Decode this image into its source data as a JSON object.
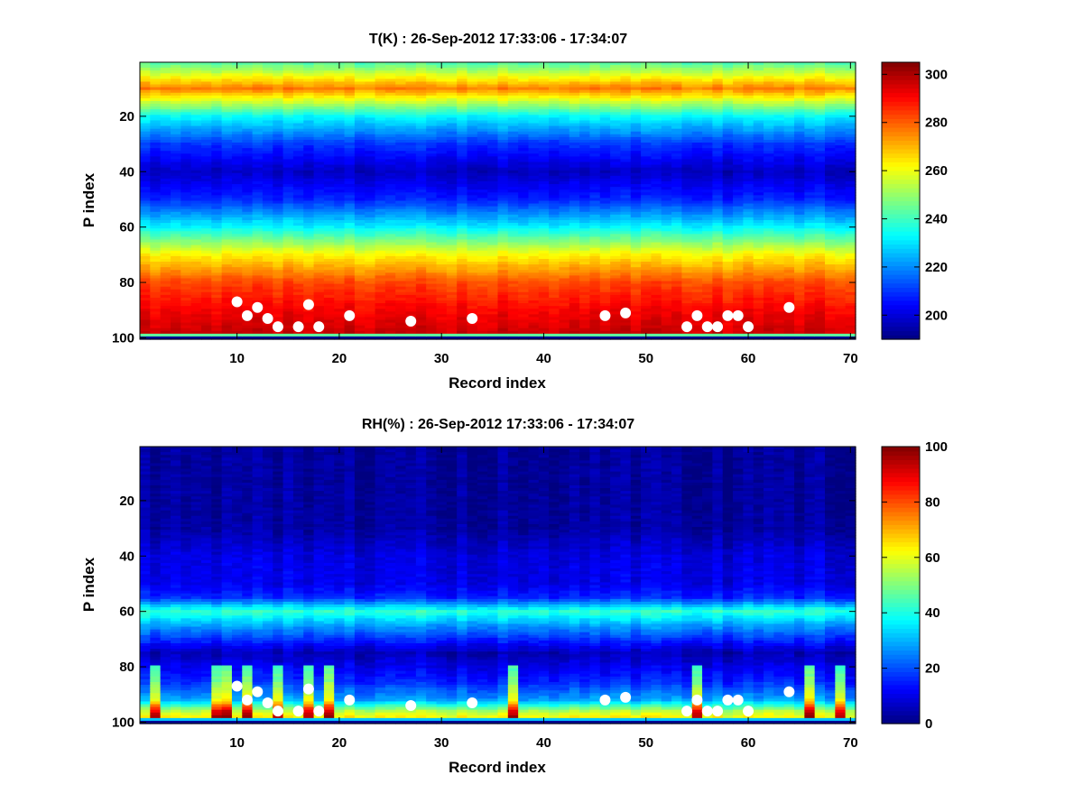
{
  "chart_data": [
    {
      "type": "heatmap",
      "title": "T(K) : 26-Sep-2012 17:33:06 - 17:34:07",
      "xlabel": "Record index",
      "ylabel": "P index",
      "xlim": [
        0.5,
        70.5
      ],
      "ylim": [
        0.5,
        100.5
      ],
      "x_reversed": false,
      "y_reversed": true,
      "x_ticks": [
        "10",
        "20",
        "30",
        "40",
        "50",
        "60",
        "70"
      ],
      "y_ticks": [
        "20",
        "40",
        "60",
        "80",
        "100"
      ],
      "colormap": "jet",
      "colorbar": {
        "clim": [
          190,
          305
        ],
        "ticks": [
          "200",
          "220",
          "240",
          "260",
          "280",
          "300"
        ]
      },
      "profile_description": {
        "p_index": [
          1,
          10,
          20,
          30,
          40,
          50,
          60,
          70,
          80,
          90,
          98,
          100
        ],
        "value": [
          243,
          276,
          233,
          210,
          197,
          208,
          232,
          262,
          282,
          291,
          296,
          192
        ]
      },
      "markers": {
        "color": "#ffffff",
        "points": [
          [
            10,
            87
          ],
          [
            11,
            92
          ],
          [
            12,
            89
          ],
          [
            13,
            93
          ],
          [
            14,
            96
          ],
          [
            16,
            96
          ],
          [
            17,
            88
          ],
          [
            18,
            96
          ],
          [
            21,
            92
          ],
          [
            27,
            94
          ],
          [
            33,
            93
          ],
          [
            46,
            92
          ],
          [
            48,
            91
          ],
          [
            54,
            96
          ],
          [
            55,
            92
          ],
          [
            56,
            96
          ],
          [
            57,
            96
          ],
          [
            58,
            92
          ],
          [
            59,
            92
          ],
          [
            60,
            96
          ],
          [
            64,
            89
          ]
        ]
      }
    },
    {
      "type": "heatmap",
      "title": "RH(%) : 26-Sep-2012 17:33:06 - 17:34:07",
      "xlabel": "Record index",
      "ylabel": "P index",
      "xlim": [
        0.5,
        70.5
      ],
      "ylim": [
        0.5,
        100.5
      ],
      "x_reversed": false,
      "y_reversed": true,
      "x_ticks": [
        "10",
        "20",
        "30",
        "40",
        "50",
        "60",
        "70"
      ],
      "y_ticks": [
        "20",
        "40",
        "60",
        "80",
        "100"
      ],
      "colormap": "jet",
      "colorbar": {
        "clim": [
          0,
          100
        ],
        "ticks": [
          "0",
          "20",
          "40",
          "60",
          "80",
          "100"
        ]
      },
      "profile_description": {
        "p_index": [
          1,
          30,
          40,
          50,
          55,
          60,
          65,
          75,
          85,
          92,
          96,
          98,
          100
        ],
        "value": [
          2,
          3,
          9,
          10,
          16,
          42,
          28,
          5,
          15,
          28,
          55,
          62,
          2
        ]
      },
      "markers": {
        "color": "#ffffff",
        "points": [
          [
            10,
            87
          ],
          [
            11,
            92
          ],
          [
            12,
            89
          ],
          [
            13,
            93
          ],
          [
            14,
            96
          ],
          [
            16,
            96
          ],
          [
            17,
            88
          ],
          [
            18,
            96
          ],
          [
            21,
            92
          ],
          [
            27,
            94
          ],
          [
            33,
            93
          ],
          [
            46,
            92
          ],
          [
            48,
            91
          ],
          [
            54,
            96
          ],
          [
            55,
            92
          ],
          [
            56,
            96
          ],
          [
            57,
            96
          ],
          [
            58,
            92
          ],
          [
            59,
            92
          ],
          [
            60,
            96
          ],
          [
            64,
            89
          ]
        ]
      }
    }
  ]
}
